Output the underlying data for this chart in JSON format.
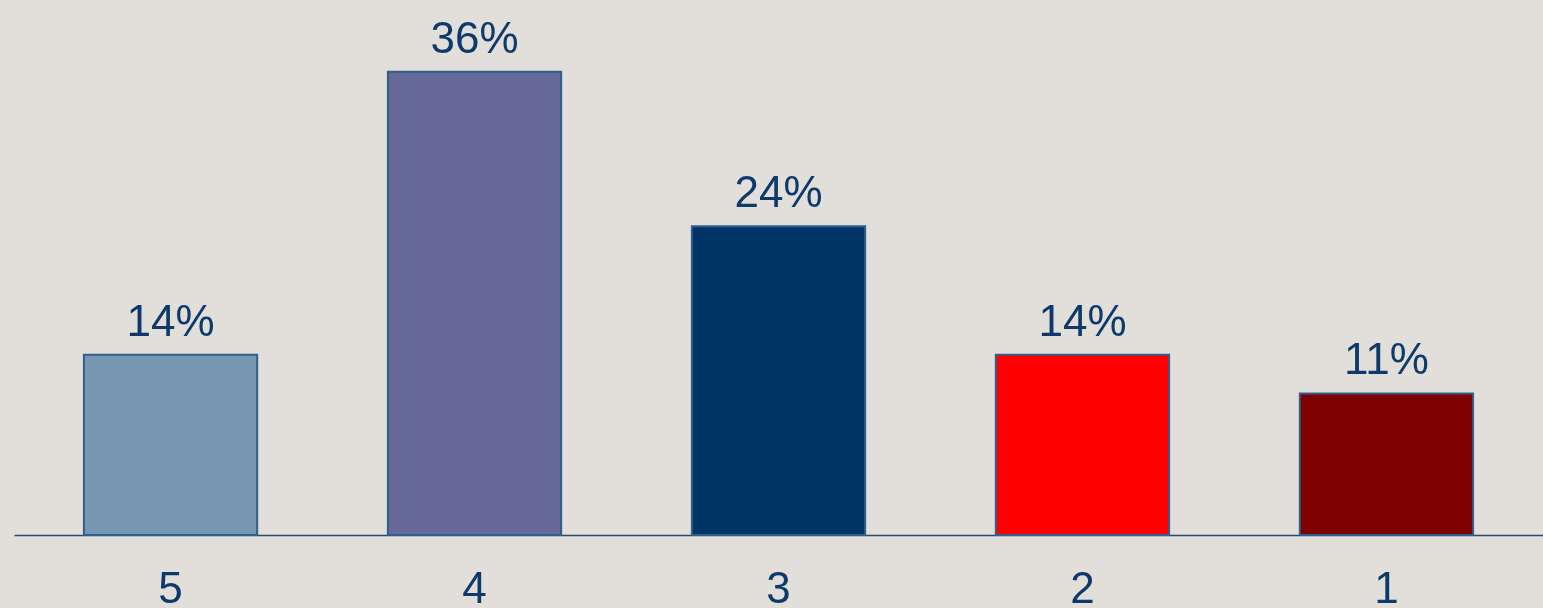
{
  "chart_data": {
    "type": "bar",
    "categories": [
      "5",
      "4",
      "3",
      "2",
      "1"
    ],
    "values": [
      14,
      36,
      24,
      14,
      11
    ],
    "colors": [
      "#7897b3",
      "#666897",
      "#003466",
      "#ff0000",
      "#7f0000"
    ],
    "value_labels": [
      "14%",
      "36%",
      "24%",
      "14%",
      "11%"
    ]
  }
}
